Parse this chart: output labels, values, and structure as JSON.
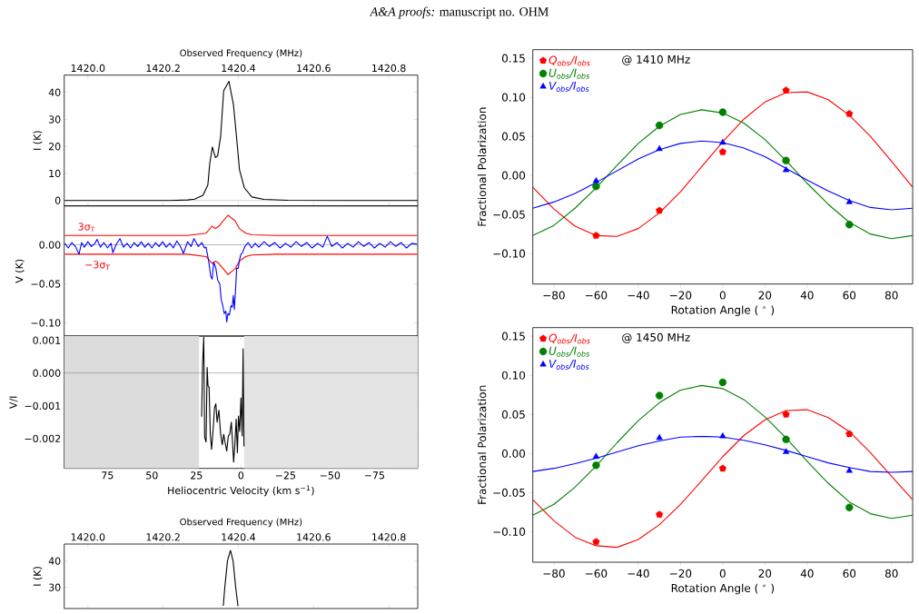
{
  "chart_data": [
    {
      "type": "other",
      "title": "*A&A proofs:* manuscript no. OHM"
    },
    {
      "type": "line",
      "ylabel": "I (K)",
      "xlabel": "Observed Frequency (MHz)",
      "xlim": [
        1419.937,
        1420.877
      ],
      "xticks": [
        {
          "value": 1420.0,
          "label": "1420.0"
        },
        {
          "value": 1420.2,
          "label": "1420.2"
        },
        {
          "value": 1420.4,
          "label": "1420.4"
        },
        {
          "value": 1420.6,
          "label": "1420.6"
        },
        {
          "value": 1420.8,
          "label": "1420.8"
        }
      ],
      "ylim": [
        -2,
        46.4
      ],
      "yticks": [
        0,
        10,
        20,
        30,
        40
      ],
      "ref_lines": [
        {
          "axis": "y",
          "value": 0,
          "color": "#b0b0b0"
        }
      ],
      "series": [
        {
          "color": "#000000",
          "x": [
            1419.938,
            1420.123,
            1420.218,
            1420.265,
            1420.284,
            1420.306,
            1420.319,
            1420.324,
            1420.331,
            1420.339,
            1420.345,
            1420.353,
            1420.361,
            1420.375,
            1420.387,
            1420.395,
            1420.403,
            1420.416,
            1420.436,
            1420.468,
            1420.531,
            1420.692,
            1420.877
          ],
          "values": [
            0,
            0,
            0,
            0.2,
            0.5,
            1.9,
            5.8,
            13.7,
            19.8,
            15.9,
            16.5,
            23.8,
            40.6,
            44.1,
            35.5,
            23.8,
            11.4,
            4.7,
            1.3,
            0.4,
            0.1,
            0,
            0
          ]
        }
      ]
    },
    {
      "type": "line",
      "ylabel": "V (K)",
      "tick_labels": "y",
      "xlim": [
        99.3,
        -99.3
      ],
      "ylim": [
        -0.117,
        0.05
      ],
      "yticks": [
        {
          "value": 0,
          "label": "0.00"
        },
        {
          "value": -0.05,
          "label": "−0.05"
        },
        {
          "value": -0.1,
          "label": "−0.10"
        }
      ],
      "ref_lines": [
        {
          "axis": "y",
          "value": 0,
          "color": "#808080"
        }
      ],
      "annotations": [
        "3σ$_{T}$",
        "−3σ$_{T}$"
      ],
      "series": [
        {
          "color": "#ff0000",
          "x": [
            99,
            30,
            19.6,
            16.2,
            14.5,
            12.8,
            7.3,
            3.4,
            0.9,
            -2.6,
            -6,
            -20,
            -99
          ],
          "values": [
            0.012,
            0.012,
            0.015,
            0.024,
            0.021,
            0.023,
            0.038,
            0.031,
            0.021,
            0.015,
            0.013,
            0.012,
            0.012
          ]
        },
        {
          "color": "#ff0000",
          "x": [
            99,
            30,
            19.6,
            16.2,
            14.5,
            12.8,
            7.3,
            3.4,
            0.9,
            -2.6,
            -6,
            -20,
            -99
          ],
          "values": [
            -0.012,
            -0.012,
            -0.015,
            -0.024,
            -0.021,
            -0.023,
            -0.038,
            -0.031,
            -0.021,
            -0.015,
            -0.013,
            -0.012,
            -0.012
          ]
        },
        {
          "color": "#0000ff",
          "x": [
            99,
            97,
            95,
            93,
            91,
            89.5,
            88,
            86,
            84,
            82,
            80.8,
            79,
            77,
            75,
            73,
            72,
            70,
            68,
            66,
            64,
            62,
            60,
            58,
            56,
            54,
            52,
            50,
            48,
            46,
            44,
            42,
            40,
            38,
            36,
            34,
            32.3,
            30,
            28,
            26.4,
            24,
            22,
            20.5,
            19.6,
            18.2,
            17,
            16.2,
            15.3,
            14.1,
            13.1,
            11.9,
            11.1,
            10.2,
            9.4,
            8.5,
            8,
            7.3,
            6.5,
            5.6,
            4.9,
            4.3,
            3.7,
            3.1,
            2.4,
            1.5,
            0.9,
            0,
            -0.9,
            -2.2,
            -4,
            -6,
            -8,
            -10,
            -13,
            -16,
            -19,
            -22,
            -25,
            -28,
            -31,
            -34,
            -37,
            -40,
            -43,
            -46,
            -48.5,
            -51,
            -54,
            -57,
            -60,
            -63,
            -66,
            -69,
            -72,
            -75,
            -78,
            -81,
            -84,
            -87,
            -90,
            -93,
            -96,
            -99
          ],
          "values": [
            0.002,
            -0.004,
            0.003,
            -0.002,
            -0.012,
            0.003,
            -0.003,
            0.004,
            -0.002,
            0.002,
            0.007,
            -0.003,
            0.003,
            -0.004,
            0.002,
            -0.01,
            0.001,
            0.008,
            -0.003,
            0.002,
            -0.004,
            0.003,
            -0.002,
            0.004,
            -0.003,
            0.002,
            -0.004,
            0.003,
            -0.002,
            0.004,
            -0.003,
            0.002,
            -0.004,
            0.005,
            -0.002,
            -0.011,
            0.004,
            -0.002,
            0.008,
            -0.002,
            0.003,
            -0.004,
            -0.003,
            -0.02,
            -0.04,
            -0.044,
            -0.022,
            -0.03,
            -0.045,
            -0.05,
            -0.07,
            -0.078,
            -0.088,
            -0.085,
            -0.099,
            -0.088,
            -0.09,
            -0.078,
            -0.08,
            -0.065,
            -0.083,
            -0.06,
            -0.03,
            -0.03,
            -0.02,
            -0.012,
            -0.01,
            -0.002,
            0.003,
            -0.004,
            0.002,
            -0.003,
            0.004,
            -0.002,
            0.003,
            -0.004,
            0.002,
            -0.003,
            0.004,
            -0.002,
            0.003,
            -0.004,
            0.002,
            -0.003,
            0.011,
            -0.002,
            0.003,
            -0.004,
            0.002,
            -0.003,
            0.004,
            -0.002,
            0.003,
            -0.004,
            0.002,
            -0.003,
            0.004,
            -0.002,
            0.003,
            -0.004,
            0.002,
            0.001
          ]
        }
      ]
    },
    {
      "type": "line",
      "xlabel": "Heliocentric Velocity (km s$^{−1}$)",
      "ylabel": "V/I",
      "xlim": [
        99.3,
        -99.3
      ],
      "xticks": [
        75,
        50,
        25,
        0,
        {
          "value": -25,
          "label": "−25"
        },
        {
          "value": -50,
          "label": "−50"
        },
        {
          "value": -75,
          "label": "−75"
        }
      ],
      "ylim": [
        -0.00291,
        0.00113
      ],
      "yticks": [
        {
          "value": 0.001,
          "label": "0.001"
        },
        {
          "value": 0,
          "label": "0.000"
        },
        {
          "value": -0.001,
          "label": "−0.001"
        },
        {
          "value": -0.002,
          "label": "−0.002"
        }
      ],
      "bands": [
        {
          "axis": "x",
          "from": 99.3,
          "to": 23.5,
          "color": "#dcdcdc"
        },
        {
          "axis": "x",
          "from": -1.8,
          "to": -99.3,
          "color": "#e4e4e4"
        }
      ],
      "ref_lines": [
        {
          "axis": "y",
          "value": 0,
          "color": "#808080"
        }
      ],
      "series": [
        {
          "color": "#000000",
          "x": [
            22.1,
            21.6,
            20.9,
            20.4,
            19.6,
            19.0,
            18.5,
            17.9,
            17.2,
            16.5,
            15.6,
            14.8,
            14.1,
            13.4,
            12.4,
            11.4,
            10.5,
            9.7,
            8.8,
            8.0,
            7.1,
            6.3,
            5.4,
            4.8,
            4.1,
            3.4,
            2.7,
            2.0,
            1.4,
            0.7,
            0,
            -0.7,
            -1.2,
            -1.7
          ],
          "values": [
            -0.00133,
            0.00021,
            0.00109,
            -0.00196,
            -0.0021,
            0.00017,
            -0.00039,
            -0.00044,
            -0.00187,
            -0.00233,
            -0.00169,
            -0.00104,
            -0.00094,
            -0.0015,
            -0.00113,
            -0.00187,
            -0.00219,
            -0.00187,
            -0.00215,
            -0.00238,
            -0.00192,
            -0.00187,
            -0.0015,
            -0.00206,
            -0.00272,
            -0.00215,
            -0.00141,
            -0.00243,
            -0.00131,
            -0.00178,
            -0.00076,
            -0.00192,
            0.00074,
            -0.00224
          ]
        }
      ]
    },
    {
      "type": "scatter",
      "xlabel": "Rotation Angle ( $^{∘}$ )",
      "ylabel": "Fractional Polarization",
      "xlim": [
        -90,
        90
      ],
      "xticks": [
        {
          "value": -80,
          "label": "−80"
        },
        {
          "value": -60,
          "label": "−60"
        },
        {
          "value": -40,
          "label": "−40"
        },
        {
          "value": -20,
          "label": "−20"
        },
        0,
        20,
        40,
        60,
        80
      ],
      "ylim": [
        -0.139,
        0.161
      ],
      "yticks": [
        {
          "value": -0.1,
          "label": "−0.10"
        },
        {
          "value": -0.05,
          "label": "−0.05"
        },
        {
          "value": 0,
          "label": "0.00"
        },
        {
          "value": 0.05,
          "label": "0.05"
        },
        {
          "value": 0.1,
          "label": "0.10"
        },
        {
          "value": 0.15,
          "label": "0.15"
        }
      ],
      "legend": "top left",
      "annotations": [
        "@ 1410 MHz"
      ],
      "x": [
        -60,
        -30,
        0,
        30,
        60
      ],
      "series": [
        {
          "type": "line",
          "color": "#ff0000",
          "x": [
            -90,
            -80,
            -70,
            -60,
            -50,
            -40,
            -30,
            -20,
            -10,
            0,
            10,
            20,
            30,
            40,
            50,
            60,
            70,
            80,
            90
          ],
          "values": [
            -0.015,
            -0.043,
            -0.065,
            -0.077,
            -0.078,
            -0.068,
            -0.048,
            -0.021,
            0.011,
            0.043,
            0.072,
            0.094,
            0.106,
            0.107,
            0.097,
            0.077,
            0.05,
            0.018,
            -0.015
          ]
        },
        {
          "type": "line",
          "color": "#008000",
          "x": [
            -90,
            -80,
            -70,
            -60,
            -50,
            -40,
            -30,
            -20,
            -10,
            0,
            10,
            20,
            30,
            40,
            50,
            60,
            70,
            80,
            90
          ],
          "values": [
            -0.077,
            -0.064,
            -0.042,
            -0.016,
            0.013,
            0.041,
            0.063,
            0.078,
            0.084,
            0.08,
            0.067,
            0.046,
            0.019,
            -0.01,
            -0.037,
            -0.06,
            -0.075,
            -0.081,
            -0.077
          ]
        },
        {
          "type": "line",
          "color": "#0000ff",
          "x": [
            -90,
            -80,
            -70,
            -60,
            -50,
            -40,
            -30,
            -20,
            -10,
            0,
            10,
            20,
            30,
            40,
            50,
            60,
            70,
            80,
            90
          ],
          "values": [
            -0.042,
            -0.034,
            -0.023,
            -0.009,
            0.006,
            0.021,
            0.033,
            0.041,
            0.044,
            0.042,
            0.035,
            0.024,
            0.009,
            -0.006,
            -0.02,
            -0.032,
            -0.041,
            -0.044,
            -0.042
          ]
        },
        {
          "name": "Q$_{obs}$/I$_{obs}$",
          "color": "#ff0000",
          "values": [
            -0.077,
            -0.045,
            0.03,
            0.109,
            0.079
          ]
        },
        {
          "name": "U$_{obs}$/I$_{obs}$",
          "color": "#008000",
          "marker": "circle",
          "values": [
            -0.014,
            0.064,
            0.081,
            0.019,
            -0.063
          ]
        },
        {
          "name": "V$_{obs}$/I$_{obs}$",
          "color": "#0000ff",
          "marker": "triangle",
          "values": [
            -0.007,
            0.034,
            0.042,
            0.007,
            -0.034
          ]
        }
      ]
    },
    {
      "type": "scatter",
      "xlabel": "Rotation Angle ( $^{∘}$ )",
      "ylabel": "Fractional Polarization",
      "xlim": [
        -90,
        90
      ],
      "xticks": [
        {
          "value": -80,
          "label": "−80"
        },
        {
          "value": -60,
          "label": "−60"
        },
        {
          "value": -40,
          "label": "−40"
        },
        {
          "value": -20,
          "label": "−20"
        },
        0,
        20,
        40,
        60,
        80
      ],
      "ylim": [
        -0.139,
        0.161
      ],
      "yticks": [
        {
          "value": -0.1,
          "label": "−0.10"
        },
        {
          "value": -0.05,
          "label": "−0.05"
        },
        {
          "value": 0,
          "label": "0.00"
        },
        {
          "value": 0.05,
          "label": "0.05"
        },
        {
          "value": 0.1,
          "label": "0.10"
        },
        {
          "value": 0.15,
          "label": "0.15"
        }
      ],
      "legend": "top left",
      "annotations": [
        "@ 1450 MHz"
      ],
      "x": [
        -60,
        -30,
        0,
        30,
        60
      ],
      "series": [
        {
          "type": "line",
          "color": "#ff0000",
          "x": [
            -90,
            -80,
            -70,
            -60,
            -50,
            -40,
            -30,
            -20,
            -10,
            0,
            10,
            20,
            30,
            40,
            50,
            60,
            70,
            80,
            90
          ],
          "values": [
            -0.059,
            -0.086,
            -0.107,
            -0.118,
            -0.12,
            -0.11,
            -0.091,
            -0.065,
            -0.035,
            -0.004,
            0.023,
            0.043,
            0.055,
            0.056,
            0.046,
            0.028,
            0.001,
            -0.029,
            -0.059
          ]
        },
        {
          "type": "line",
          "color": "#008000",
          "x": [
            -90,
            -80,
            -70,
            -60,
            -50,
            -40,
            -30,
            -20,
            -10,
            0,
            10,
            20,
            30,
            40,
            50,
            60,
            70,
            80,
            90
          ],
          "values": [
            -0.079,
            -0.065,
            -0.043,
            -0.016,
            0.014,
            0.042,
            0.065,
            0.081,
            0.087,
            0.083,
            0.069,
            0.047,
            0.02,
            -0.01,
            -0.038,
            -0.062,
            -0.077,
            -0.083,
            -0.079
          ]
        },
        {
          "type": "line",
          "color": "#0000ff",
          "x": [
            -90,
            -80,
            -70,
            -60,
            -50,
            -40,
            -30,
            -20,
            -10,
            0,
            10,
            20,
            30,
            40,
            50,
            60,
            70,
            80,
            90
          ],
          "values": [
            -0.023,
            -0.019,
            -0.013,
            -0.006,
            0.002,
            0.01,
            0.016,
            0.021,
            0.022,
            0.021,
            0.017,
            0.011,
            0.004,
            -0.004,
            -0.012,
            -0.018,
            -0.023,
            -0.024,
            -0.023
          ]
        },
        {
          "name": "Q$_{obs}$/I$_{obs}$",
          "color": "#ff0000",
          "values": [
            -0.113,
            -0.078,
            -0.019,
            0.05,
            0.025
          ]
        },
        {
          "name": "U$_{obs}$/I$_{obs}$",
          "color": "#008000",
          "marker": "circle",
          "values": [
            -0.015,
            0.074,
            0.091,
            0.018,
            -0.069
          ]
        },
        {
          "name": "V$_{obs}$/I$_{obs}$",
          "color": "#0000ff",
          "marker": "triangle",
          "values": [
            -0.004,
            0.02,
            0.022,
            0.002,
            -0.022
          ]
        }
      ]
    },
    {
      "type": "line",
      "ylabel": "I (K)",
      "xlabel": "Observed Frequency (MHz)",
      "xlim": [
        1419.937,
        1420.877
      ],
      "xticks": [
        {
          "value": 1420.0,
          "label": "1420.0"
        },
        {
          "value": 1420.2,
          "label": "1420.2"
        },
        {
          "value": 1420.4,
          "label": "1420.4"
        },
        {
          "value": 1420.6,
          "label": "1420.6"
        },
        {
          "value": 1420.8,
          "label": "1420.8"
        }
      ],
      "ylim": [
        22,
        46.4
      ],
      "yticks": [
        30,
        40
      ],
      "series": [
        {
          "color": "#000000",
          "x": [
            1420.36,
            1420.364,
            1420.371,
            1420.379,
            1420.386,
            1420.393,
            1420.399
          ],
          "values": [
            23,
            30,
            40,
            44,
            40,
            30,
            23
          ]
        }
      ]
    }
  ]
}
